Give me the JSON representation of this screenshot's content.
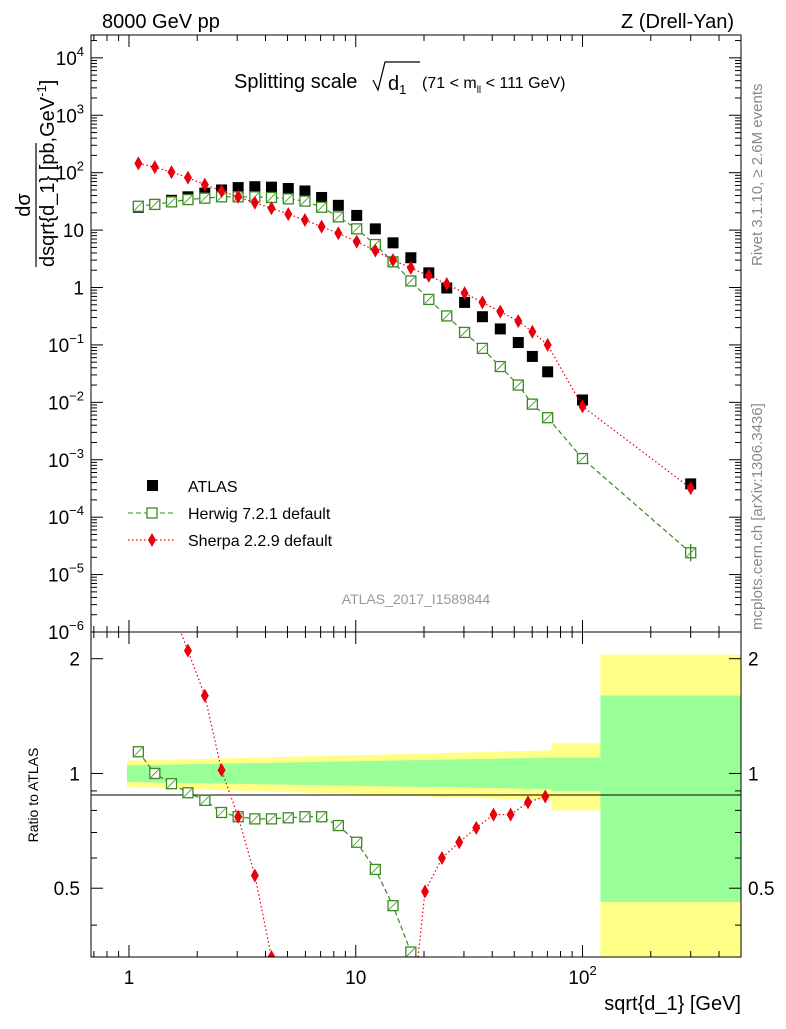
{
  "header": {
    "energy_label": "8000 GeV pp",
    "process_label": "Z (Drell-Yan)"
  },
  "side": {
    "rivet_label": "Rivet 3.1.10, ≥ 2.6M events",
    "mcplots_label": "mcplots.cern.ch [arXiv:1306.3436]"
  },
  "chart_data": [
    {
      "type": "scatter",
      "title": "Splitting scale √d₁ (71 < m_ll < 111 GeV)",
      "title_main": "Splitting scale",
      "title_sub": "(71 < m",
      "title_sub_ll": "ll",
      "title_sub_end": " < 111 GeV)",
      "ylabel": "dσ / dsqrt{d_1} [pb,GeV⁻¹]",
      "ylabel_num": "dσ",
      "ylabel_den": "dsqrt{d_1} [pb,GeV",
      "ylabel_sup": "-1",
      "xlabel": "",
      "xscale": "log",
      "yscale": "log",
      "xlim": [
        0.68,
        500
      ],
      "ylim": [
        1e-06,
        25000
      ],
      "legend_placement": "lower-left",
      "watermark": "ATLAS_2017_I1589844",
      "yticks": [
        {
          "v": 10000.0,
          "base": "10",
          "exp": "4"
        },
        {
          "v": 1000.0,
          "base": "10",
          "exp": "3"
        },
        {
          "v": 100.0,
          "base": "10",
          "exp": "2"
        },
        {
          "v": 10,
          "base": "10",
          "exp": ""
        },
        {
          "v": 1,
          "base": "1",
          "exp": ""
        },
        {
          "v": 0.1,
          "base": "10",
          "exp": "−1"
        },
        {
          "v": 0.01,
          "base": "10",
          "exp": "−2"
        },
        {
          "v": 0.001,
          "base": "10",
          "exp": "−3"
        },
        {
          "v": 0.0001,
          "base": "10",
          "exp": "−4"
        },
        {
          "v": 1e-05,
          "base": "10",
          "exp": "−5"
        },
        {
          "v": 1e-06,
          "base": "10",
          "exp": "−6"
        }
      ],
      "series": [
        {
          "name": "ATLAS",
          "color": "#000000",
          "marker": "square-filled",
          "x": [
            1.1,
            1.3,
            1.54,
            1.82,
            2.16,
            2.56,
            3.03,
            3.59,
            4.25,
            5.04,
            5.97,
            7.07,
            8.38,
            10.1,
            12.2,
            14.6,
            17.5,
            21.0,
            25.2,
            30.2,
            36.2,
            43.4,
            52.1,
            60.1,
            70.2,
            100,
            300
          ],
          "y": [
            25,
            28,
            33,
            38,
            44,
            50,
            55,
            57,
            56,
            53,
            48,
            37,
            27,
            18,
            10.5,
            6.0,
            3.3,
            1.8,
            0.98,
            0.55,
            0.31,
            0.19,
            0.11,
            0.063,
            0.034,
            0.011,
            0.00038
          ]
        },
        {
          "name": "Herwig 7.2.1 default",
          "color": "#3a8a1f",
          "marker": "square-open",
          "line": "dashed",
          "x": [
            1.1,
            1.3,
            1.54,
            1.82,
            2.16,
            2.56,
            3.03,
            3.59,
            4.25,
            5.04,
            5.97,
            7.07,
            8.38,
            10.1,
            12.2,
            14.6,
            17.5,
            21.0,
            25.2,
            30.2,
            36.2,
            43.4,
            52.1,
            60.1,
            70.2,
            100,
            300
          ],
          "y": [
            26,
            28,
            31,
            34,
            36,
            38,
            38,
            38,
            37,
            35,
            32,
            25,
            17,
            10.5,
            5.6,
            2.8,
            1.3,
            0.62,
            0.32,
            0.165,
            0.087,
            0.042,
            0.02,
            0.0093,
            0.0054,
            0.00105,
            2.4e-05
          ]
        },
        {
          "name": "Sherpa 2.2.9 default",
          "color": "#e8000b",
          "marker": "diamond",
          "line": "dotted",
          "x": [
            1.1,
            1.3,
            1.54,
            1.82,
            2.16,
            2.56,
            3.03,
            3.59,
            4.25,
            5.04,
            5.97,
            7.07,
            8.38,
            10.1,
            12.2,
            14.6,
            17.5,
            21.0,
            25.2,
            30.2,
            36.2,
            43.4,
            52.1,
            60.1,
            70.2,
            100,
            300
          ],
          "y": [
            145,
            125,
            102,
            82,
            62,
            48,
            38,
            30,
            24,
            19,
            15,
            11.5,
            8.8,
            6.3,
            4.4,
            3.0,
            2.2,
            1.6,
            1.15,
            0.8,
            0.55,
            0.38,
            0.26,
            0.17,
            0.1,
            0.0085,
            0.00032
          ]
        }
      ]
    },
    {
      "type": "scatter",
      "title": "",
      "xlabel": "sqrt{d_1} [GeV]",
      "ylabel": "Ratio to ATLAS",
      "xscale": "log",
      "yscale": "log",
      "xlim": [
        0.68,
        500
      ],
      "ylim": [
        0.33,
        2.35
      ],
      "xticks": [
        {
          "v": 1,
          "label": "1"
        },
        {
          "v": 10,
          "label": "10"
        },
        {
          "v": 100,
          "label": "10",
          "exp": "2"
        }
      ],
      "yticks": [
        {
          "v": 0.5,
          "label": "0.5"
        },
        {
          "v": 1,
          "label": "1"
        },
        {
          "v": 2,
          "label": "2"
        }
      ],
      "bands": [
        {
          "name": "inner",
          "color": "#99ff99",
          "segments": [
            {
              "x0": 0.98,
              "x1": 73,
              "lo0": 0.95,
              "hi0": 1.05,
              "lo1": 0.91,
              "hi1": 1.1
            },
            {
              "x0": 73,
              "x1": 120,
              "lo0": 0.9,
              "hi0": 1.1,
              "lo1": 0.9,
              "hi1": 1.1
            },
            {
              "x0": 120,
              "x1": 500,
              "lo0": 0.46,
              "hi0": 1.6,
              "lo1": 0.46,
              "hi1": 1.6
            }
          ]
        },
        {
          "name": "outer",
          "color": "#ffff88",
          "segments": [
            {
              "x0": 0.98,
              "x1": 73,
              "lo0": 0.92,
              "hi0": 1.08,
              "lo1": 0.85,
              "hi1": 1.15
            },
            {
              "x0": 73,
              "x1": 120,
              "lo0": 0.8,
              "hi0": 1.2,
              "lo1": 0.8,
              "hi1": 1.2
            },
            {
              "x0": 120,
              "x1": 500,
              "lo0": 0.33,
              "hi0": 2.05,
              "lo1": 0.33,
              "hi1": 2.05
            }
          ]
        }
      ],
      "series": [
        {
          "name": "Herwig 7.2.1 default",
          "color": "#3a8a1f",
          "x": [
            1.1,
            1.3,
            1.54,
            1.82,
            2.16,
            2.56,
            3.03,
            3.59,
            4.25,
            5.04,
            5.97,
            7.07,
            8.38,
            10.1,
            12.2,
            14.6,
            17.5
          ],
          "y": [
            1.14,
            1.0,
            0.94,
            0.89,
            0.85,
            0.79,
            0.77,
            0.76,
            0.76,
            0.765,
            0.77,
            0.77,
            0.73,
            0.66,
            0.56,
            0.45,
            0.34
          ]
        },
        {
          "name": "Sherpa 2.2.9 default",
          "color": "#e8000b",
          "x": [
            1.82,
            2.16,
            2.56,
            3.03,
            3.59,
            4.25,
            20.2,
            24.0,
            28.6,
            34.0,
            40.5,
            48.2,
            57.5,
            68.5
          ],
          "y": [
            2.1,
            1.6,
            1.02,
            0.77,
            0.54,
            0.33,
            0.49,
            0.6,
            0.66,
            0.72,
            0.78,
            0.78,
            0.84,
            0.87
          ]
        }
      ]
    }
  ]
}
